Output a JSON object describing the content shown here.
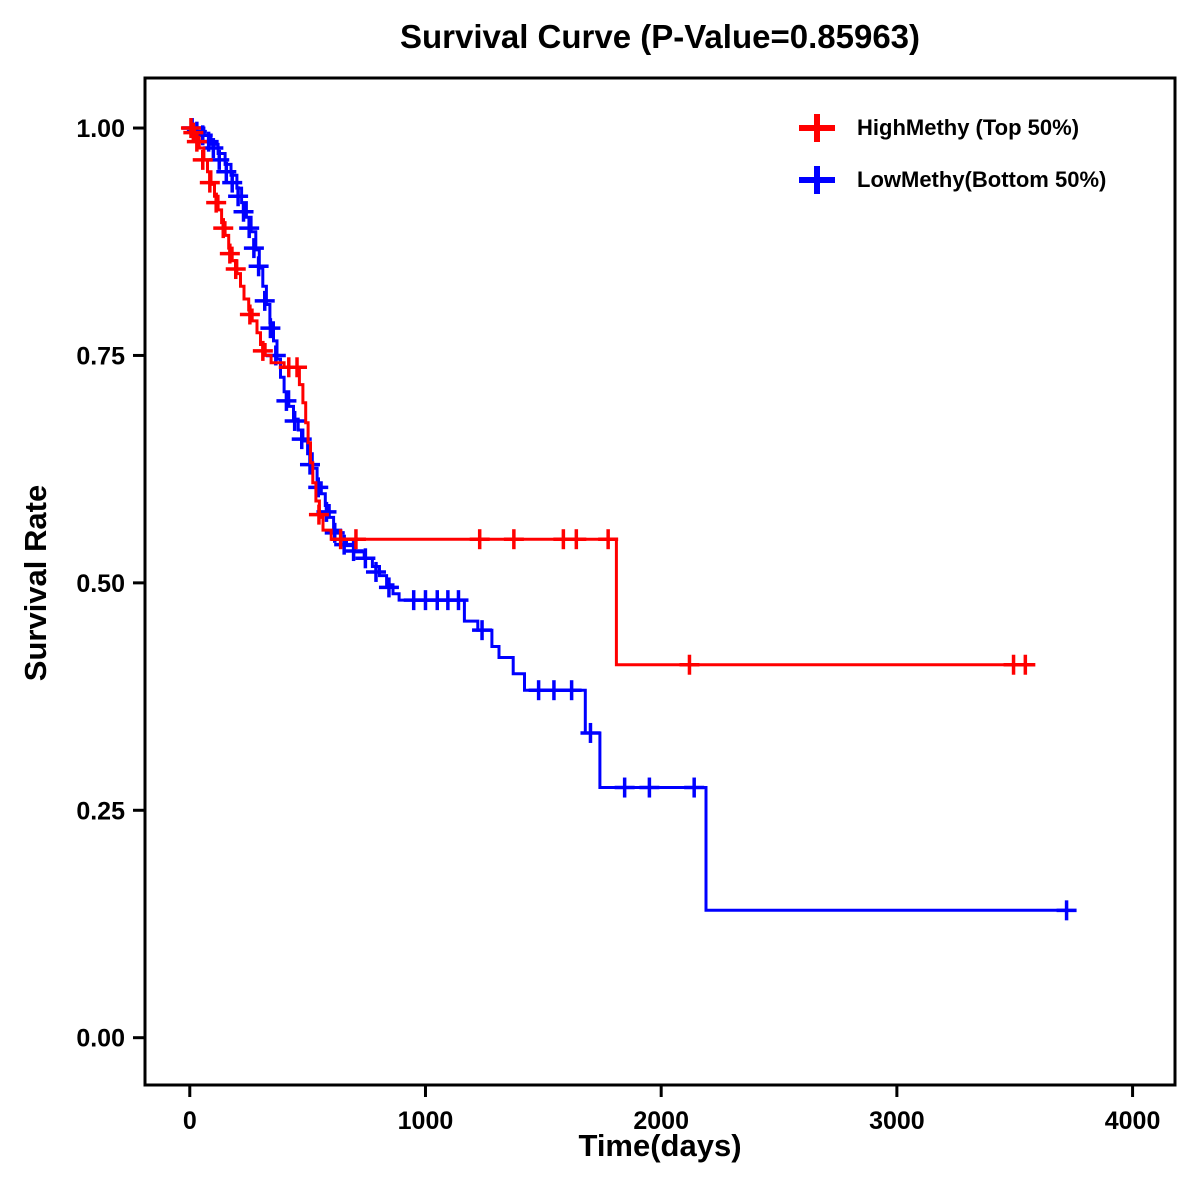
{
  "chart_data": {
    "type": "line",
    "subtype": "kaplan-meier-step",
    "title": "Survival Curve (P-Value=0.85963)",
    "xlabel": "Time(days)",
    "ylabel": "Survival Rate",
    "p_value": "0.85963",
    "xlim": [
      -190,
      4180
    ],
    "ylim": [
      -0.052,
      1.055
    ],
    "xticks": [
      0,
      1000,
      2000,
      3000,
      4000
    ],
    "xtick_labels": [
      "0",
      "1000",
      "2000",
      "3000",
      "4000"
    ],
    "yticks": [
      0.0,
      0.25,
      0.5,
      0.75,
      1.0
    ],
    "ytick_labels": [
      "0.00",
      "0.25",
      "0.50",
      "0.75",
      "1.00"
    ],
    "grid": false,
    "legend_position": "top-right",
    "series": [
      {
        "name": "HighMethy (Top 50%)",
        "color": "#FF0000",
        "steps": [
          [
            0,
            1.0
          ],
          [
            20,
            0.99
          ],
          [
            40,
            0.978
          ],
          [
            60,
            0.965
          ],
          [
            75,
            0.952
          ],
          [
            90,
            0.938
          ],
          [
            105,
            0.925
          ],
          [
            120,
            0.91
          ],
          [
            135,
            0.896
          ],
          [
            150,
            0.882
          ],
          [
            165,
            0.868
          ],
          [
            180,
            0.854
          ],
          [
            200,
            0.84
          ],
          [
            215,
            0.826
          ],
          [
            230,
            0.812
          ],
          [
            250,
            0.8
          ],
          [
            265,
            0.788
          ],
          [
            285,
            0.775
          ],
          [
            300,
            0.762
          ],
          [
            320,
            0.75
          ],
          [
            345,
            0.742
          ],
          [
            400,
            0.737
          ],
          [
            465,
            0.718
          ],
          [
            480,
            0.698
          ],
          [
            492,
            0.676
          ],
          [
            502,
            0.654
          ],
          [
            512,
            0.632
          ],
          [
            522,
            0.61
          ],
          [
            535,
            0.59
          ],
          [
            550,
            0.572
          ],
          [
            565,
            0.558
          ],
          [
            600,
            0.548
          ],
          [
            1810,
            0.41
          ],
          [
            3560,
            0.41
          ]
        ],
        "censors": [
          [
            5,
            1.0
          ],
          [
            15,
            0.995
          ],
          [
            30,
            0.985
          ],
          [
            55,
            0.965
          ],
          [
            85,
            0.94
          ],
          [
            112,
            0.918
          ],
          [
            142,
            0.89
          ],
          [
            170,
            0.862
          ],
          [
            195,
            0.845
          ],
          [
            255,
            0.795
          ],
          [
            310,
            0.755
          ],
          [
            420,
            0.737
          ],
          [
            455,
            0.737
          ],
          [
            548,
            0.575
          ],
          [
            640,
            0.548
          ],
          [
            705,
            0.548
          ],
          [
            1230,
            0.548
          ],
          [
            1375,
            0.548
          ],
          [
            1585,
            0.548
          ],
          [
            1640,
            0.548
          ],
          [
            1775,
            0.548
          ],
          [
            2120,
            0.41
          ],
          [
            3495,
            0.41
          ],
          [
            3545,
            0.41
          ]
        ]
      },
      {
        "name": "LowMethy(Bottom 50%)",
        "color": "#0000FF",
        "steps": [
          [
            0,
            1.0
          ],
          [
            60,
            0.992
          ],
          [
            90,
            0.982
          ],
          [
            120,
            0.972
          ],
          [
            150,
            0.96
          ],
          [
            175,
            0.948
          ],
          [
            200,
            0.934
          ],
          [
            220,
            0.918
          ],
          [
            240,
            0.902
          ],
          [
            260,
            0.886
          ],
          [
            280,
            0.866
          ],
          [
            295,
            0.846
          ],
          [
            310,
            0.826
          ],
          [
            325,
            0.806
          ],
          [
            340,
            0.786
          ],
          [
            355,
            0.766
          ],
          [
            370,
            0.746
          ],
          [
            385,
            0.726
          ],
          [
            400,
            0.71
          ],
          [
            420,
            0.694
          ],
          [
            440,
            0.68
          ],
          [
            460,
            0.668
          ],
          [
            480,
            0.656
          ],
          [
            500,
            0.642
          ],
          [
            520,
            0.626
          ],
          [
            540,
            0.61
          ],
          [
            558,
            0.598
          ],
          [
            575,
            0.585
          ],
          [
            592,
            0.572
          ],
          [
            610,
            0.558
          ],
          [
            640,
            0.548
          ],
          [
            665,
            0.541
          ],
          [
            700,
            0.534
          ],
          [
            740,
            0.527
          ],
          [
            775,
            0.518
          ],
          [
            805,
            0.508
          ],
          [
            835,
            0.498
          ],
          [
            862,
            0.488
          ],
          [
            888,
            0.481
          ],
          [
            1165,
            0.458
          ],
          [
            1222,
            0.448
          ],
          [
            1282,
            0.43
          ],
          [
            1312,
            0.418
          ],
          [
            1372,
            0.4
          ],
          [
            1420,
            0.382
          ],
          [
            1678,
            0.335
          ],
          [
            1740,
            0.275
          ],
          [
            2190,
            0.14
          ],
          [
            3725,
            0.14
          ]
        ],
        "censors": [
          [
            10,
            1.0
          ],
          [
            30,
            0.996
          ],
          [
            55,
            0.992
          ],
          [
            80,
            0.985
          ],
          [
            100,
            0.978
          ],
          [
            125,
            0.965
          ],
          [
            155,
            0.952
          ],
          [
            180,
            0.94
          ],
          [
            205,
            0.925
          ],
          [
            228,
            0.908
          ],
          [
            252,
            0.89
          ],
          [
            272,
            0.868
          ],
          [
            292,
            0.848
          ],
          [
            318,
            0.81
          ],
          [
            342,
            0.78
          ],
          [
            365,
            0.75
          ],
          [
            410,
            0.7
          ],
          [
            445,
            0.678
          ],
          [
            475,
            0.658
          ],
          [
            510,
            0.63
          ],
          [
            545,
            0.605
          ],
          [
            580,
            0.578
          ],
          [
            615,
            0.555
          ],
          [
            655,
            0.542
          ],
          [
            695,
            0.535
          ],
          [
            745,
            0.527
          ],
          [
            790,
            0.512
          ],
          [
            845,
            0.495
          ],
          [
            950,
            0.481
          ],
          [
            1000,
            0.481
          ],
          [
            1050,
            0.481
          ],
          [
            1095,
            0.481
          ],
          [
            1140,
            0.481
          ],
          [
            1240,
            0.448
          ],
          [
            1480,
            0.382
          ],
          [
            1545,
            0.382
          ],
          [
            1620,
            0.382
          ],
          [
            1700,
            0.335
          ],
          [
            1845,
            0.275
          ],
          [
            1950,
            0.275
          ],
          [
            2140,
            0.275
          ],
          [
            3720,
            0.14
          ]
        ]
      }
    ]
  }
}
